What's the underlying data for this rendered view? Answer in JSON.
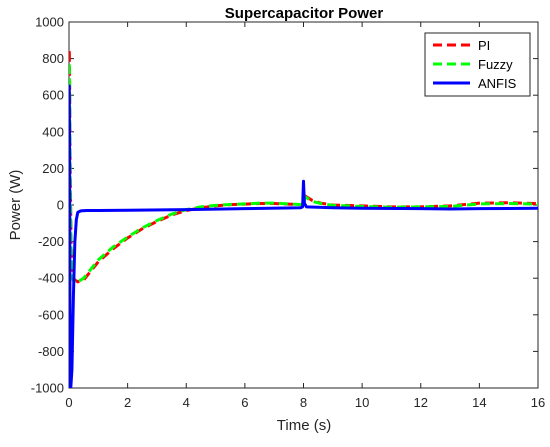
{
  "chart_data": {
    "type": "line",
    "title": "Supercapacitor Power",
    "xlabel": "Time (s)",
    "ylabel": "Power (W)",
    "xlim": [
      0,
      16
    ],
    "ylim": [
      -1000,
      1000
    ],
    "xticks": [
      0,
      2,
      4,
      6,
      8,
      10,
      12,
      14,
      16
    ],
    "yticks": [
      -1000,
      -800,
      -600,
      -400,
      -200,
      0,
      200,
      400,
      600,
      800,
      1000
    ],
    "grid": false,
    "legend_position": "top-right",
    "series": [
      {
        "name": "PI",
        "color": "#ff0000",
        "dash": "dashed",
        "points": [
          [
            0,
            -50
          ],
          [
            0.01,
            850
          ],
          [
            0.02,
            700
          ],
          [
            0.04,
            200
          ],
          [
            0.07,
            -200
          ],
          [
            0.1,
            -380
          ],
          [
            0.2,
            -410
          ],
          [
            0.3,
            -420
          ],
          [
            0.5,
            -410
          ],
          [
            0.8,
            -350
          ],
          [
            1.0,
            -310
          ],
          [
            1.5,
            -240
          ],
          [
            2.0,
            -180
          ],
          [
            2.5,
            -130
          ],
          [
            3.0,
            -90
          ],
          [
            3.5,
            -55
          ],
          [
            4.0,
            -30
          ],
          [
            4.5,
            -15
          ],
          [
            5.0,
            -5
          ],
          [
            5.5,
            2
          ],
          [
            6.0,
            5
          ],
          [
            6.5,
            8
          ],
          [
            7.0,
            8
          ],
          [
            7.5,
            5
          ],
          [
            7.9,
            2
          ],
          [
            8.0,
            5
          ],
          [
            8.05,
            50
          ],
          [
            8.3,
            25
          ],
          [
            8.6,
            10
          ],
          [
            9.0,
            0
          ],
          [
            10.0,
            -5
          ],
          [
            11.0,
            -10
          ],
          [
            12.0,
            -10
          ],
          [
            13.0,
            -5
          ],
          [
            14.0,
            10
          ],
          [
            15.0,
            12
          ],
          [
            16.0,
            8
          ]
        ]
      },
      {
        "name": "Fuzzy",
        "color": "#00ff00",
        "dash": "dashed",
        "points": [
          [
            0,
            -50
          ],
          [
            0.01,
            780
          ],
          [
            0.02,
            650
          ],
          [
            0.04,
            150
          ],
          [
            0.07,
            -250
          ],
          [
            0.1,
            -400
          ],
          [
            0.2,
            -425
          ],
          [
            0.3,
            -420
          ],
          [
            0.5,
            -400
          ],
          [
            0.8,
            -340
          ],
          [
            1.0,
            -300
          ],
          [
            1.5,
            -230
          ],
          [
            2.0,
            -175
          ],
          [
            2.5,
            -125
          ],
          [
            3.0,
            -85
          ],
          [
            3.5,
            -50
          ],
          [
            4.0,
            -25
          ],
          [
            4.5,
            -10
          ],
          [
            5.0,
            -2
          ],
          [
            5.5,
            3
          ],
          [
            6.0,
            6
          ],
          [
            6.5,
            10
          ],
          [
            7.0,
            10
          ],
          [
            7.5,
            6
          ],
          [
            7.9,
            3
          ],
          [
            8.0,
            5
          ],
          [
            8.05,
            45
          ],
          [
            8.3,
            20
          ],
          [
            8.6,
            8
          ],
          [
            9.0,
            -2
          ],
          [
            10.0,
            -8
          ],
          [
            11.0,
            -12
          ],
          [
            12.0,
            -10
          ],
          [
            13.0,
            -8
          ],
          [
            14.0,
            6
          ],
          [
            15.0,
            8
          ],
          [
            16.0,
            5
          ]
        ]
      },
      {
        "name": "ANFIS",
        "color": "#0000ff",
        "dash": "solid",
        "points": [
          [
            0,
            -50
          ],
          [
            0.01,
            650
          ],
          [
            0.02,
            300
          ],
          [
            0.03,
            -400
          ],
          [
            0.04,
            -990
          ],
          [
            0.06,
            -1000
          ],
          [
            0.1,
            -900
          ],
          [
            0.15,
            -500
          ],
          [
            0.2,
            -200
          ],
          [
            0.25,
            -80
          ],
          [
            0.3,
            -40
          ],
          [
            0.4,
            -32
          ],
          [
            0.6,
            -30
          ],
          [
            1.0,
            -30
          ],
          [
            2.0,
            -29
          ],
          [
            4.0,
            -25
          ],
          [
            6.0,
            -20
          ],
          [
            7.9,
            -15
          ],
          [
            7.97,
            -10
          ],
          [
            8.0,
            130
          ],
          [
            8.03,
            10
          ],
          [
            8.1,
            -10
          ],
          [
            9.0,
            -15
          ],
          [
            10.0,
            -18
          ],
          [
            12.0,
            -20
          ],
          [
            13.0,
            -22
          ],
          [
            14.0,
            -20
          ],
          [
            16.0,
            -18
          ]
        ]
      }
    ]
  }
}
